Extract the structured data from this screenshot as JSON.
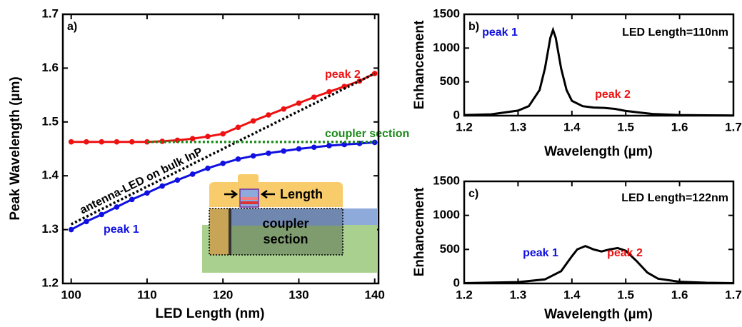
{
  "chart_data": [
    {
      "type": "line",
      "panel_label": "a)",
      "xlabel": "LED Length (nm)",
      "ylabel": "Peak Wavelength (µm)",
      "xlim": [
        98.9,
        140.5
      ],
      "ylim": [
        1.2,
        1.7
      ],
      "xticks": [
        100,
        110,
        120,
        130,
        140
      ],
      "yticks": [
        1.2,
        1.3,
        1.4,
        1.5,
        1.6,
        1.7
      ],
      "series": [
        {
          "name": "peak 1",
          "color": "#1010e0",
          "style": "solid",
          "marker": true,
          "x": [
            100,
            102,
            104,
            106,
            108,
            110,
            112,
            114,
            116,
            118,
            120,
            122,
            124,
            126,
            128,
            130,
            132,
            134,
            136,
            138,
            140
          ],
          "values": [
            1.3,
            1.315,
            1.328,
            1.342,
            1.356,
            1.368,
            1.381,
            1.392,
            1.403,
            1.414,
            1.423,
            1.431,
            1.437,
            1.442,
            1.446,
            1.45,
            1.453,
            1.456,
            1.458,
            1.46,
            1.462
          ]
        },
        {
          "name": "peak 2",
          "color": "#ee1111",
          "style": "solid",
          "marker": true,
          "x": [
            100,
            102,
            104,
            106,
            108,
            110,
            112,
            114,
            116,
            118,
            120,
            122,
            124,
            126,
            128,
            130,
            132,
            134,
            136,
            138,
            140
          ],
          "values": [
            1.463,
            1.463,
            1.463,
            1.463,
            1.463,
            1.463,
            1.464,
            1.466,
            1.469,
            1.473,
            1.478,
            1.49,
            1.502,
            1.513,
            1.524,
            1.535,
            1.546,
            1.556,
            1.566,
            1.576,
            1.59
          ]
        },
        {
          "name": "antenna-LED on bulk InP",
          "color": "#000000",
          "style": "dotted",
          "marker": false,
          "x": [
            100,
            140
          ],
          "values": [
            1.31,
            1.59
          ]
        },
        {
          "name": "coupler section",
          "color": "#1a8a1a",
          "style": "dotted",
          "marker": false,
          "x": [
            110,
            140
          ],
          "values": [
            1.463,
            1.463
          ]
        }
      ],
      "inset_labels": [
        "Length",
        "coupler",
        "section"
      ]
    },
    {
      "type": "line",
      "panel_label": "b)",
      "xlabel": "Wavelength (µm)",
      "ylabel": "Enhancement",
      "xlim": [
        1.2,
        1.7
      ],
      "ylim": [
        0,
        1500
      ],
      "xticks": [
        1.2,
        1.3,
        1.4,
        1.5,
        1.6,
        1.7
      ],
      "yticks": [
        0,
        500,
        1000,
        1500
      ],
      "series": [
        {
          "color": "#000000",
          "style": "solid",
          "marker": false,
          "x": [
            1.2,
            1.25,
            1.3,
            1.32,
            1.34,
            1.35,
            1.36,
            1.365,
            1.37,
            1.38,
            1.39,
            1.4,
            1.42,
            1.44,
            1.46,
            1.48,
            1.5,
            1.55,
            1.6,
            1.65,
            1.7
          ],
          "values": [
            10,
            20,
            75,
            140,
            380,
            700,
            1150,
            1270,
            1150,
            700,
            380,
            220,
            140,
            120,
            115,
            100,
            70,
            25,
            10,
            5,
            3
          ]
        }
      ],
      "annotations": [
        {
          "text": "peak 1",
          "color": "#1010e0"
        },
        {
          "text": "LED Length=110nm",
          "color": "#000000"
        },
        {
          "text": "peak 2",
          "color": "#ee1111"
        }
      ]
    },
    {
      "type": "line",
      "panel_label": "c)",
      "xlabel": "Wavelength (µm)",
      "ylabel": "Enhancement",
      "xlim": [
        1.2,
        1.7
      ],
      "ylim": [
        0,
        1500
      ],
      "xticks": [
        1.2,
        1.3,
        1.4,
        1.5,
        1.6,
        1.7
      ],
      "yticks": [
        0,
        500,
        1000,
        1500
      ],
      "series": [
        {
          "color": "#000000",
          "style": "solid",
          "marker": false,
          "x": [
            1.2,
            1.3,
            1.35,
            1.38,
            1.4,
            1.41,
            1.425,
            1.44,
            1.455,
            1.47,
            1.485,
            1.5,
            1.52,
            1.54,
            1.56,
            1.6,
            1.65,
            1.7
          ],
          "values": [
            5,
            20,
            60,
            180,
            400,
            500,
            550,
            500,
            470,
            500,
            520,
            480,
            330,
            160,
            70,
            25,
            10,
            5
          ]
        }
      ],
      "annotations": [
        {
          "text": "LED Length=122nm",
          "color": "#000000"
        },
        {
          "text": "peak 1",
          "color": "#1010e0"
        },
        {
          "text": "peak 2",
          "color": "#ee1111"
        }
      ]
    }
  ]
}
